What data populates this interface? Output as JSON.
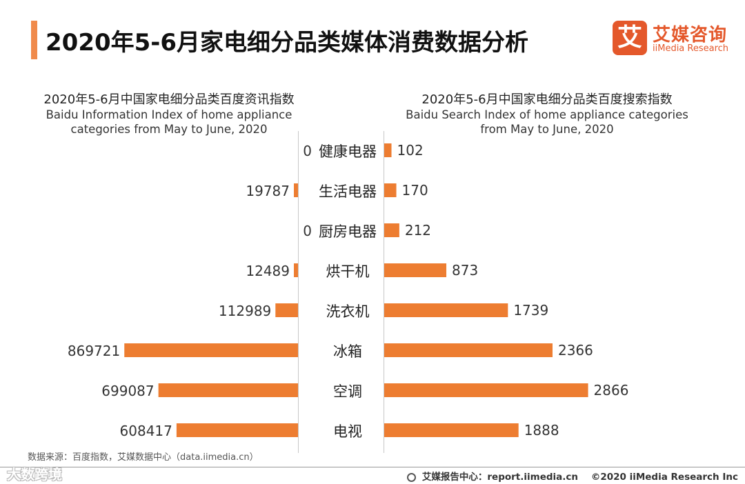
{
  "header": {
    "title": "2020年5-6月家电细分品类媒体消费数据分析",
    "logo_mark": "艾",
    "logo_cn": "艾媒咨询",
    "logo_en": "iiMedia Research"
  },
  "chart_data": [
    {
      "type": "bar",
      "orientation": "horizontal",
      "title": "2020年5-6月中国家电细分品类百度资讯指数",
      "subtitle": "Baidu Information Index of home appliance categories from May to June, 2020",
      "categories": [
        "健康电器",
        "生活电器",
        "厨房电器",
        "烘干机",
        "洗衣机",
        "冰箱",
        "空调",
        "电视"
      ],
      "values": [
        0,
        19787,
        0,
        12489,
        112989,
        869721,
        699087,
        608417
      ],
      "xlim": [
        0,
        950000
      ],
      "color": "#ed7d31"
    },
    {
      "type": "bar",
      "orientation": "horizontal",
      "title": "2020年5-6月中国家电细分品类百度搜索指数",
      "subtitle": "Baidu Search Index of home appliance categories from May to June, 2020",
      "categories": [
        "健康电器",
        "生活电器",
        "厨房电器",
        "烘干机",
        "洗衣机",
        "冰箱",
        "空调",
        "电视"
      ],
      "values": [
        102,
        170,
        212,
        873,
        1739,
        2366,
        2866,
        1888
      ],
      "xlim": [
        0,
        3200
      ],
      "color": "#ed7d31"
    }
  ],
  "charts_text": {
    "left_title": "2020年5-6月中国家电细分品类百度资讯指数",
    "left_sub1": "Baidu Information Index of home appliance",
    "left_sub2": "categories from May to June, 2020",
    "right_title": "2020年5-6月中国家电细分品类百度搜索指数",
    "right_sub1": "Baidu Search Index of home appliance categories",
    "right_sub2": "from May to June, 2020"
  },
  "footer": {
    "source": "数据来源：百度指数，艾媒数据中心（data.iimedia.cn）",
    "watermark": "大数跨境",
    "report": "艾媒报告中心：report.iimedia.cn",
    "copyright": "©2020  iiMedia Research  Inc"
  }
}
